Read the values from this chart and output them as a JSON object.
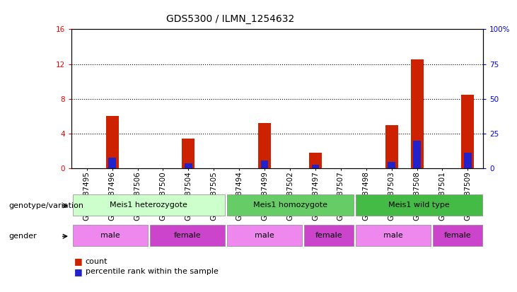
{
  "title": "GDS5300 / ILMN_1254632",
  "samples": [
    "GSM1087495",
    "GSM1087496",
    "GSM1087506",
    "GSM1087500",
    "GSM1087504",
    "GSM1087505",
    "GSM1087494",
    "GSM1087499",
    "GSM1087502",
    "GSM1087497",
    "GSM1087507",
    "GSM1087498",
    "GSM1087503",
    "GSM1087508",
    "GSM1087501",
    "GSM1087509"
  ],
  "count_values": [
    0,
    6.0,
    0,
    0,
    3.4,
    0,
    0,
    5.2,
    0,
    1.8,
    0,
    0,
    5.0,
    12.5,
    0,
    8.5
  ],
  "percentile_values": [
    0,
    7.5,
    0,
    0,
    3.5,
    0,
    0,
    5.5,
    0,
    2.5,
    0,
    0,
    4.5,
    20.0,
    0,
    11.0
  ],
  "ylim_left": [
    0,
    16
  ],
  "ylim_right": [
    0,
    100
  ],
  "yticks_left": [
    0,
    4,
    8,
    12,
    16
  ],
  "yticks_right": [
    0,
    25,
    50,
    75,
    100
  ],
  "ytick_labels_left": [
    "0",
    "4",
    "8",
    "12",
    "16"
  ],
  "ytick_labels_right": [
    "0",
    "25",
    "50",
    "75",
    "100%"
  ],
  "bar_color_red": "#cc2200",
  "bar_color_blue": "#2222cc",
  "bar_width": 0.5,
  "blue_bar_width": 0.3,
  "genotype_groups": [
    {
      "label": "Meis1 heterozygote",
      "start": 0,
      "end": 6,
      "color": "#ccffcc"
    },
    {
      "label": "Meis1 homozygote",
      "start": 6,
      "end": 11,
      "color": "#66cc66"
    },
    {
      "label": "Meis1 wild type",
      "start": 11,
      "end": 16,
      "color": "#44bb44"
    }
  ],
  "gender_groups": [
    {
      "label": "male",
      "start": 0,
      "end": 3,
      "color": "#ee88ee"
    },
    {
      "label": "female",
      "start": 3,
      "end": 6,
      "color": "#cc44cc"
    },
    {
      "label": "male",
      "start": 6,
      "end": 9,
      "color": "#ee88ee"
    },
    {
      "label": "female",
      "start": 9,
      "end": 11,
      "color": "#cc44cc"
    },
    {
      "label": "male",
      "start": 11,
      "end": 14,
      "color": "#ee88ee"
    },
    {
      "label": "female",
      "start": 14,
      "end": 16,
      "color": "#cc44cc"
    }
  ],
  "legend_count_label": "count",
  "legend_percentile_label": "percentile rank within the sample",
  "genotype_label": "genotype/variation",
  "gender_label": "gender",
  "bg_color": "#ffffff",
  "tick_fontsize": 7.5,
  "label_fontsize": 8
}
